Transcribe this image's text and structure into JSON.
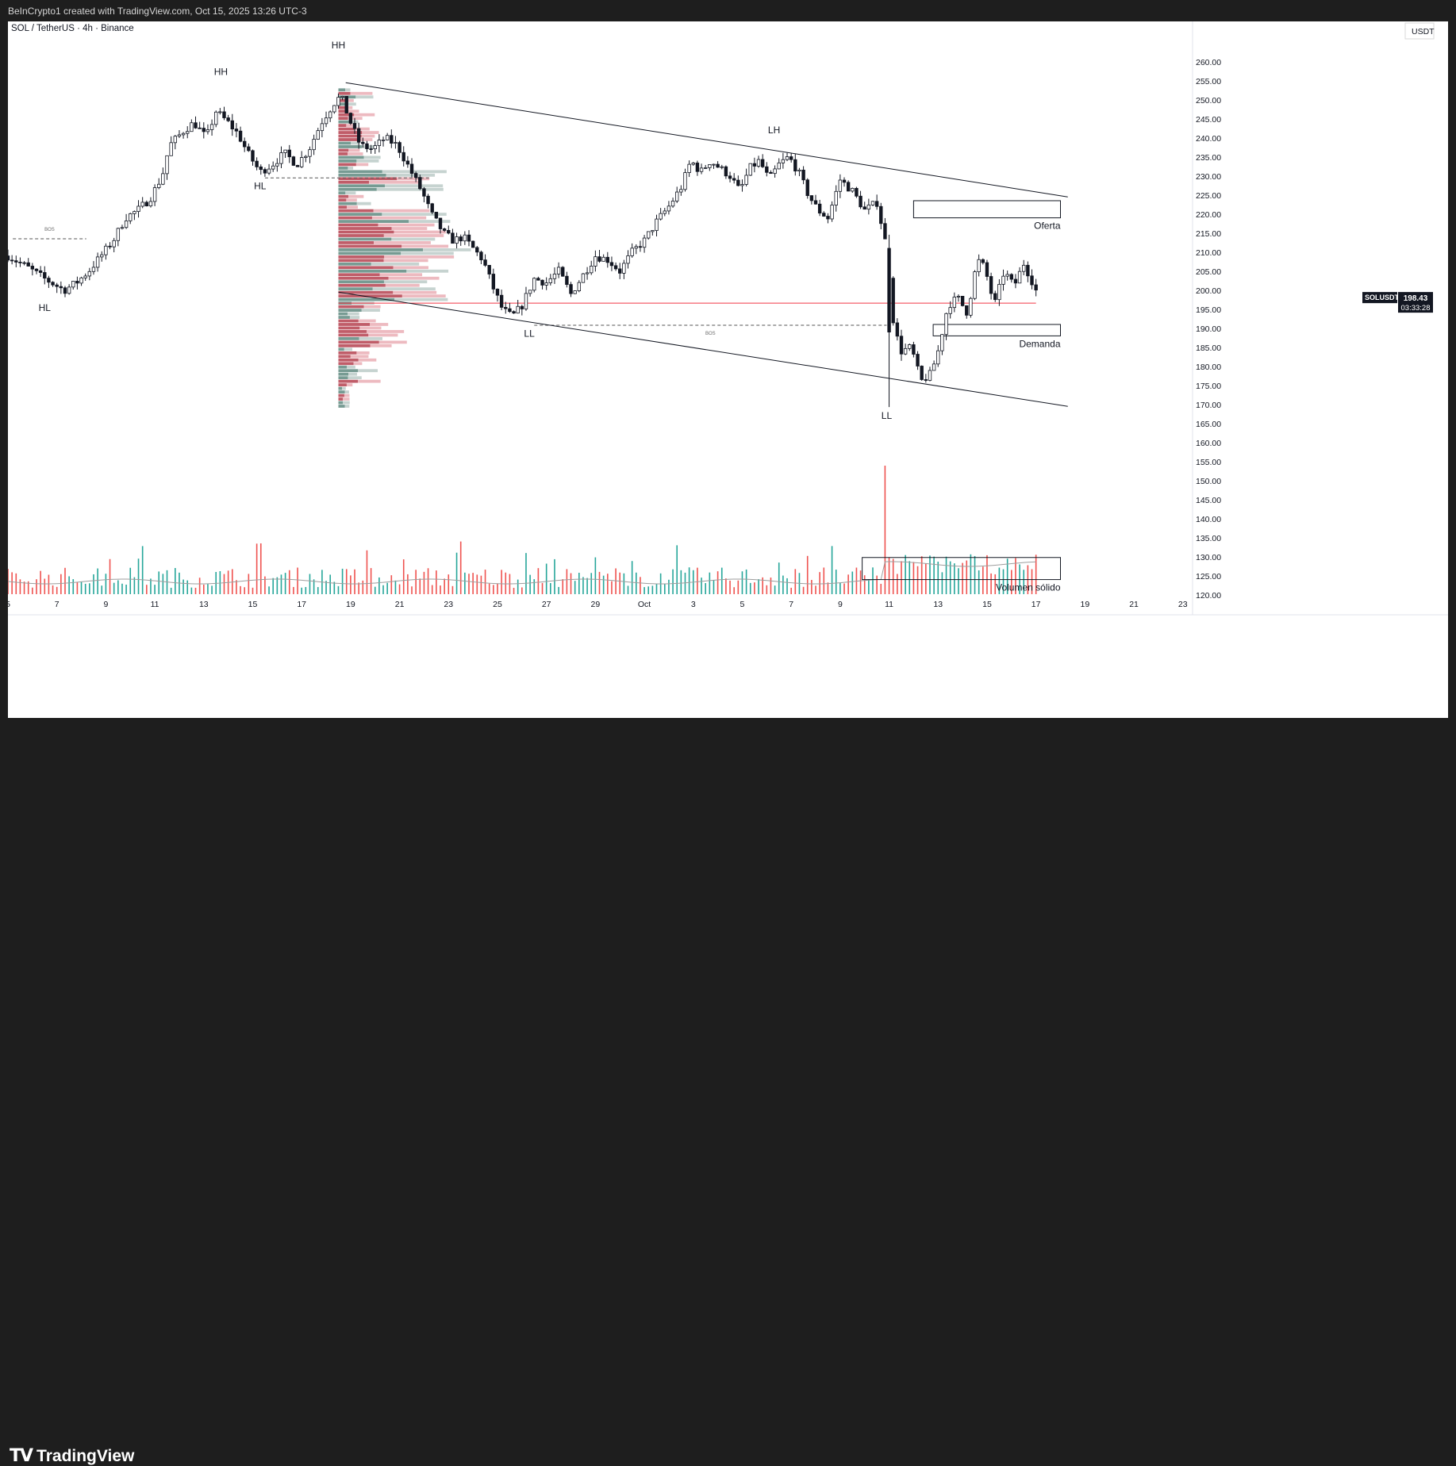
{
  "header": {
    "attribution": "BeInCrypto1 created with TradingView.com, Oct 15, 2025 13:26 UTC-3"
  },
  "footer": {
    "brand": "TradingView"
  },
  "colors": {
    "up": "#22ab94",
    "down": "#f23645",
    "candle": "#131722",
    "price_line": "#f23645",
    "volume_up": "#26a69a",
    "volume_down": "#ef5350"
  },
  "chart_data": {
    "type": "candlestick",
    "title": "SOL / TetherUS · 4h · Binance",
    "symbol": "SOLUSDT",
    "currency": "USDT",
    "y_axis": {
      "ticks": [
        120,
        125,
        130,
        135,
        140,
        145,
        150,
        155,
        160,
        165,
        170,
        175,
        180,
        185,
        190,
        195,
        200,
        205,
        210,
        215,
        220,
        225,
        230,
        235,
        240,
        245,
        250,
        255,
        260
      ],
      "tick_labels": [
        "120.00",
        "125.00",
        "130.00",
        "135.00",
        "140.00",
        "145.00",
        "150.00",
        "155.00",
        "160.00",
        "165.00",
        "170.00",
        "175.00",
        "180.00",
        "185.00",
        "190.00",
        "195.00",
        "200.00",
        "205.00",
        "210.00",
        "215.00",
        "220.00",
        "225.00",
        "230.00",
        "235.00",
        "240.00",
        "245.00",
        "250.00",
        "255.00",
        "260.00"
      ],
      "range": [
        116,
        266
      ]
    },
    "x_axis": {
      "labels": [
        "5",
        "7",
        "9",
        "11",
        "13",
        "15",
        "17",
        "19",
        "21",
        "23",
        "25",
        "27",
        "29",
        "Oct",
        "3",
        "5",
        "7",
        "9",
        "11",
        "13",
        "15",
        "17",
        "19",
        "21",
        "23"
      ],
      "range_days": [
        0,
        48.3
      ],
      "first_label_day": 0,
      "label_step_days": 2
    },
    "last_price": {
      "value": "198.43",
      "countdown": "03:33:28",
      "level": 196.6
    },
    "price_path": [
      [
        0.0,
        209
      ],
      [
        0.8,
        206
      ],
      [
        1.5,
        203
      ],
      [
        2.3,
        200
      ],
      [
        2.8,
        202
      ],
      [
        3.3,
        205
      ],
      [
        3.8,
        209
      ],
      [
        4.3,
        213
      ],
      [
        4.8,
        219
      ],
      [
        5.3,
        221
      ],
      [
        5.8,
        224
      ],
      [
        6.3,
        230
      ],
      [
        6.6,
        238
      ],
      [
        7.2,
        242
      ],
      [
        7.6,
        244
      ],
      [
        8.1,
        240
      ],
      [
        8.5,
        247
      ],
      [
        9.0,
        244
      ],
      [
        9.4,
        241
      ],
      [
        9.8,
        236
      ],
      [
        10.3,
        231
      ],
      [
        10.8,
        233
      ],
      [
        11.3,
        236
      ],
      [
        11.8,
        233
      ],
      [
        12.3,
        237
      ],
      [
        12.8,
        244
      ],
      [
        13.3,
        249
      ],
      [
        13.6,
        251
      ],
      [
        14.0,
        244
      ],
      [
        14.4,
        238
      ],
      [
        14.9,
        237
      ],
      [
        15.4,
        240
      ],
      [
        15.9,
        238
      ],
      [
        16.4,
        232
      ],
      [
        16.9,
        226
      ],
      [
        17.3,
        220
      ],
      [
        17.8,
        215
      ],
      [
        18.2,
        213
      ],
      [
        18.6,
        214
      ],
      [
        19.0,
        211
      ],
      [
        19.4,
        208
      ],
      [
        19.8,
        201
      ],
      [
        20.2,
        195
      ],
      [
        20.6,
        193
      ],
      [
        21.0,
        196
      ],
      [
        21.5,
        203
      ],
      [
        22.0,
        202
      ],
      [
        22.5,
        205
      ],
      [
        23.0,
        199
      ],
      [
        23.5,
        204
      ],
      [
        24.0,
        209
      ],
      [
        24.5,
        208
      ],
      [
        25.0,
        205
      ],
      [
        25.5,
        210
      ],
      [
        26.0,
        213
      ],
      [
        26.5,
        218
      ],
      [
        27.0,
        222
      ],
      [
        27.5,
        227
      ],
      [
        27.9,
        234
      ],
      [
        28.3,
        231
      ],
      [
        28.7,
        234
      ],
      [
        29.1,
        232
      ],
      [
        29.5,
        230
      ],
      [
        29.9,
        226
      ],
      [
        30.3,
        232
      ],
      [
        30.7,
        234
      ],
      [
        31.1,
        229
      ],
      [
        31.5,
        233
      ],
      [
        31.9,
        235
      ],
      [
        32.3,
        231
      ],
      [
        32.7,
        225
      ],
      [
        33.1,
        221
      ],
      [
        33.5,
        219
      ],
      [
        34.0,
        229
      ],
      [
        34.5,
        226
      ],
      [
        35.0,
        221
      ],
      [
        35.5,
        223
      ],
      [
        35.9,
        211
      ],
      [
        36.2,
        190
      ],
      [
        36.5,
        184
      ],
      [
        36.9,
        185
      ],
      [
        37.3,
        176
      ],
      [
        37.7,
        178
      ],
      [
        38.0,
        184
      ],
      [
        38.4,
        196
      ],
      [
        38.8,
        198
      ],
      [
        39.2,
        194
      ],
      [
        39.6,
        208
      ],
      [
        39.9,
        206
      ],
      [
        40.3,
        196
      ],
      [
        40.7,
        205
      ],
      [
        41.1,
        201
      ],
      [
        41.5,
        207
      ],
      [
        41.8,
        203
      ],
      [
        42.1,
        198.4
      ]
    ],
    "volume": {
      "spike_day": 35.9,
      "spike_relative": 1.0
    },
    "volume_profile": {
      "top_price": 253,
      "bottom_price": 169,
      "levels": 90
    },
    "trendlines": [
      {
        "from": [
          13.8,
          254.5
        ],
        "to": [
          43.3,
          224.5
        ]
      },
      {
        "from": [
          13.5,
          199.5
        ],
        "to": [
          43.3,
          169.5
        ]
      }
    ],
    "horizontal_levels": [
      {
        "from_day": 0.2,
        "to_day": 3.2,
        "price": 213.5,
        "label": "BOS"
      },
      {
        "from_day": 10.5,
        "to_day": 17.2,
        "price": 229.5,
        "label": ""
      },
      {
        "from_day": 21.5,
        "to_day": 35.9,
        "price": 190.8,
        "label": "BOS"
      },
      {
        "from_day": 13.5,
        "to_day": 42.0,
        "price": 196.6,
        "label": ""
      }
    ],
    "zones": [
      {
        "label": "Oferta",
        "day_from": 37.0,
        "day_to": 43.0,
        "price_top": 223.5,
        "price_bottom": 219.0
      },
      {
        "label": "Demanda",
        "day_from": 37.8,
        "day_to": 43.0,
        "price_top": 191.0,
        "price_bottom": 188.0
      },
      {
        "label": "Volumen sólido",
        "day_from": 34.9,
        "day_to": 43.0,
        "price_top": 129.8,
        "price_bottom": 124.0
      }
    ],
    "annotations": [
      {
        "text": "HH",
        "day": 8.7,
        "price": 256.5
      },
      {
        "text": "HH",
        "day": 13.5,
        "price": 263.5
      },
      {
        "text": "HL",
        "day": 1.5,
        "price": 194.5
      },
      {
        "text": "HL",
        "day": 10.3,
        "price": 226.5
      },
      {
        "text": "LL",
        "day": 21.3,
        "price": 187.8
      },
      {
        "text": "LH",
        "day": 31.3,
        "price": 241.2
      },
      {
        "text": "LL",
        "day": 35.9,
        "price": 166.2
      }
    ]
  }
}
